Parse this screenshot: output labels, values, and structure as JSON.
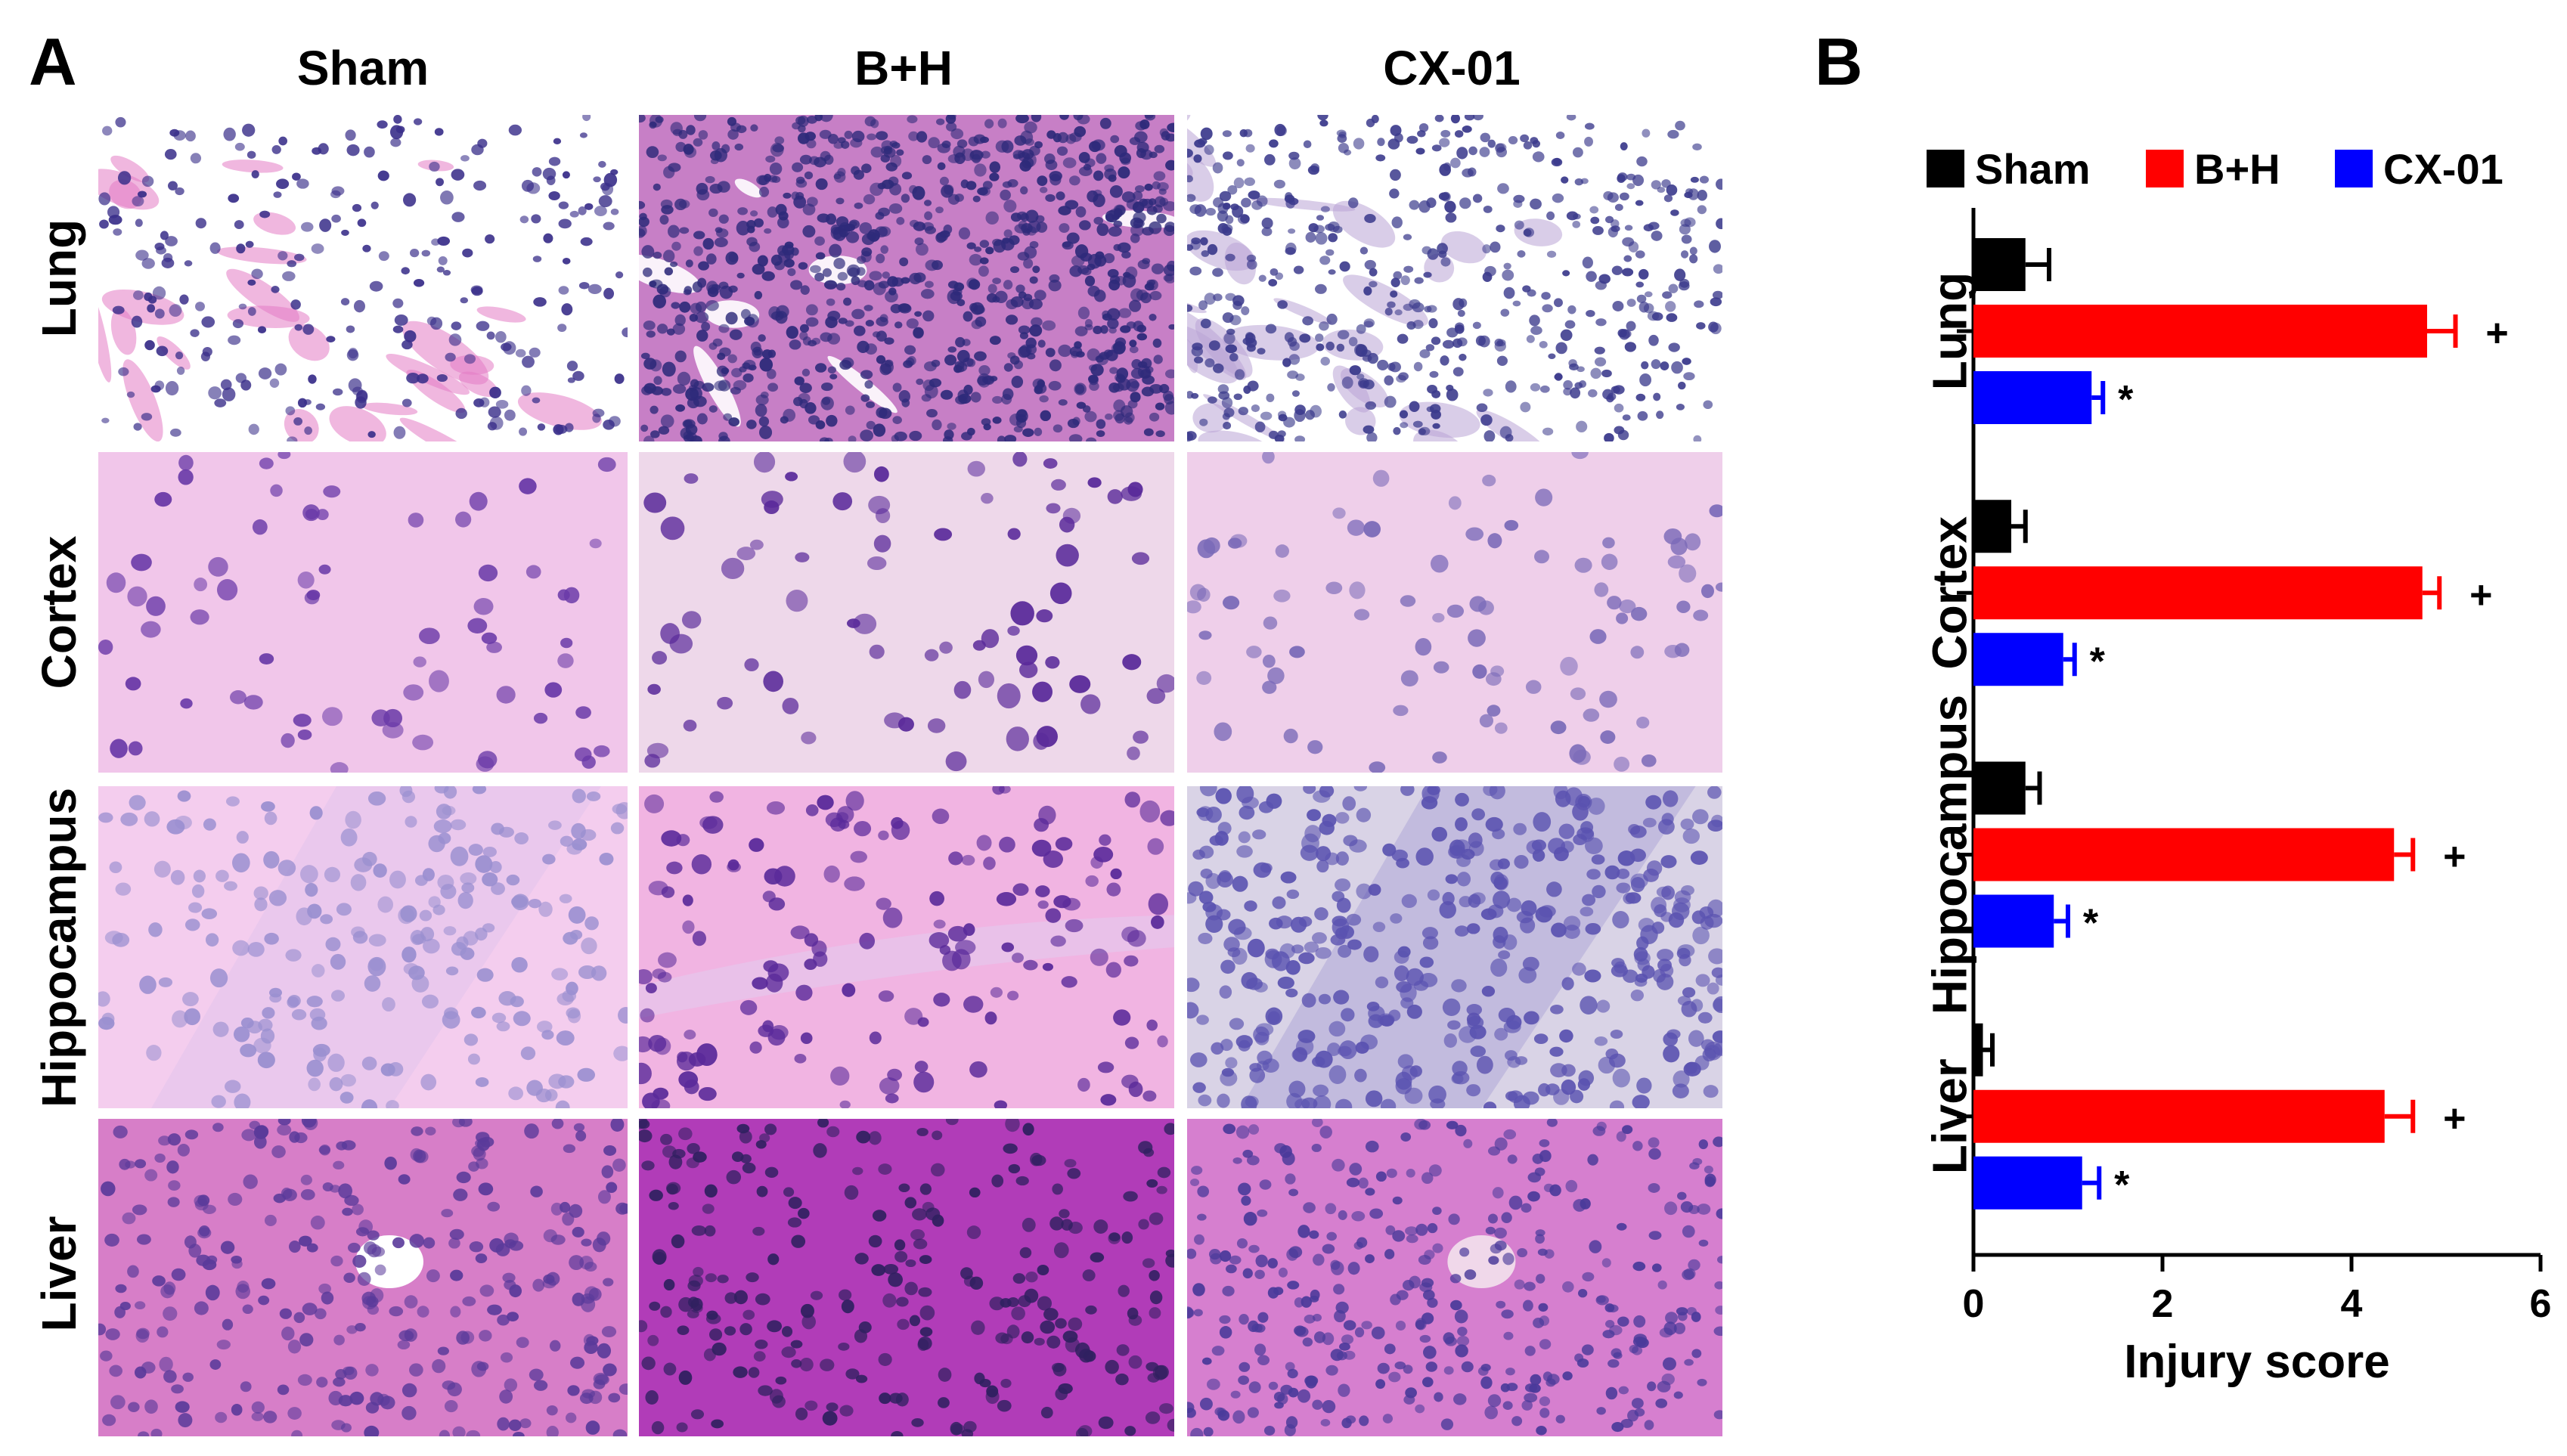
{
  "panels": {
    "a_label": "A",
    "b_label": "B"
  },
  "histology": {
    "columns": [
      "Sham",
      "B+H",
      "CX-01"
    ],
    "rows": [
      "Lung",
      "Cortex",
      "Hippocampus",
      "Liver"
    ]
  },
  "chart_data": {
    "type": "bar",
    "orientation": "horizontal",
    "categories": [
      "Lung",
      "Cortex",
      "Hippocampus",
      "Liver"
    ],
    "series": [
      {
        "name": "Sham",
        "color": "#000000",
        "values": [
          0.55,
          0.4,
          0.55,
          0.1
        ],
        "errors": [
          0.25,
          0.15,
          0.15,
          0.1
        ],
        "sig": [
          "",
          "",
          "",
          ""
        ]
      },
      {
        "name": "B+H",
        "color": "#ff0000",
        "values": [
          4.8,
          4.75,
          4.45,
          4.35
        ],
        "errors": [
          0.3,
          0.18,
          0.2,
          0.3
        ],
        "sig": [
          "+",
          "+",
          "+",
          "+"
        ]
      },
      {
        "name": "CX-01",
        "color": "#0000ff",
        "values": [
          1.25,
          0.95,
          0.85,
          1.15
        ],
        "errors": [
          0.12,
          0.12,
          0.15,
          0.18
        ],
        "sig": [
          "*",
          "*",
          "*",
          "*"
        ]
      }
    ],
    "xlabel": "Injury score",
    "xlim": [
      0,
      6
    ],
    "xticks": [
      0,
      2,
      4,
      6
    ],
    "legend_position": "top"
  }
}
